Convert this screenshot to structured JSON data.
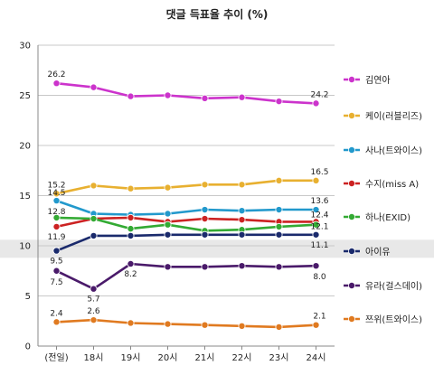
{
  "chart_data": {
    "type": "line",
    "title": "댓글 득표율 추이 (%)",
    "xlabel": "",
    "ylabel": "",
    "categories": [
      "(전일)",
      "18시",
      "19시",
      "20시",
      "21시",
      "22시",
      "23시",
      "24시"
    ],
    "ylim": [
      0,
      30
    ],
    "yticks": [
      "0",
      "5",
      "10",
      "15",
      "20",
      "25",
      "30"
    ],
    "grid": true,
    "legend_position": "right",
    "series": [
      {
        "name": "김연아",
        "color": "#cc33cc",
        "values": [
          26.2,
          25.8,
          24.9,
          25.0,
          24.7,
          24.8,
          24.4,
          24.2
        ],
        "labels": [
          "26.2",
          "",
          "",
          "",
          "",
          "",
          "",
          "24.2"
        ]
      },
      {
        "name": "케이(러블리즈)",
        "color": "#e8b030",
        "values": [
          15.2,
          16.0,
          15.7,
          15.8,
          16.1,
          16.1,
          16.5,
          16.5
        ],
        "labels": [
          "15.2",
          "",
          "",
          "",
          "",
          "",
          "",
          "16.5"
        ]
      },
      {
        "name": "사나(트와이스)",
        "color": "#2299cc",
        "values": [
          14.5,
          13.2,
          13.1,
          13.2,
          13.6,
          13.5,
          13.6,
          13.6
        ],
        "labels": [
          "14.5",
          "",
          "",
          "",
          "",
          "",
          "",
          "13.6"
        ]
      },
      {
        "name": "수지(miss A)",
        "color": "#cc2222",
        "values": [
          11.9,
          12.7,
          12.8,
          12.4,
          12.7,
          12.6,
          12.4,
          12.4
        ],
        "labels": [
          "11.9",
          "",
          "",
          "",
          "",
          "",
          "",
          "12.4"
        ]
      },
      {
        "name": "하나(EXID)",
        "color": "#33aa33",
        "values": [
          12.8,
          12.7,
          11.7,
          12.1,
          11.5,
          11.6,
          11.9,
          12.1
        ],
        "labels": [
          "12.8",
          "",
          "",
          "",
          "",
          "",
          "",
          "12.1"
        ]
      },
      {
        "name": "아이유",
        "color": "#1a2a6c",
        "values": [
          9.5,
          11.0,
          11.0,
          11.1,
          11.1,
          11.1,
          11.1,
          11.1
        ],
        "labels": [
          "9.5",
          "",
          "",
          "",
          "",
          "",
          "",
          "11.1"
        ]
      },
      {
        "name": "유라(걸스데이)",
        "color": "#4a1a6a",
        "values": [
          7.5,
          5.7,
          8.2,
          7.9,
          7.9,
          8.0,
          7.9,
          8.0
        ],
        "labels": [
          "7.5",
          "5.7",
          "8.2",
          "",
          "",
          "",
          "",
          "8.0"
        ]
      },
      {
        "name": "쯔위(트와이스)",
        "color": "#e07a20",
        "values": [
          2.4,
          2.6,
          2.3,
          2.2,
          2.1,
          2.0,
          1.9,
          2.1
        ],
        "labels": [
          "2.4",
          "2.6",
          "",
          "",
          "",
          "",
          "",
          "2.1"
        ]
      }
    ]
  }
}
